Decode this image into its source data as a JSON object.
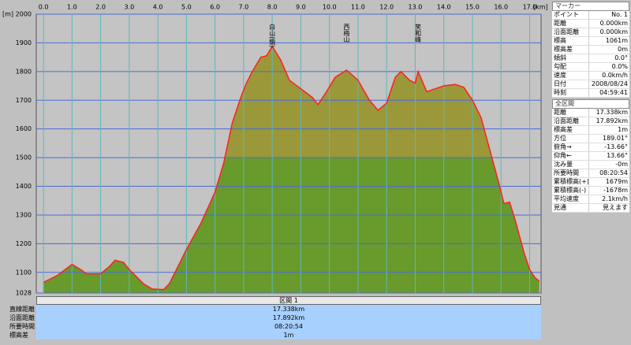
{
  "chart_data": {
    "type": "area",
    "y_unit": "[m]",
    "x_unit": "[km]",
    "x": [
      0,
      0.5,
      1.0,
      1.3,
      1.5,
      2.0,
      2.3,
      2.5,
      2.8,
      3.0,
      3.5,
      3.8,
      4.2,
      4.4,
      4.6,
      5.0,
      5.5,
      6.0,
      6.3,
      6.6,
      6.9,
      7.1,
      7.3,
      7.6,
      7.8,
      8.0,
      8.3,
      8.6,
      9.0,
      9.4,
      9.6,
      9.9,
      10.2,
      10.6,
      11.0,
      11.4,
      11.7,
      12.0,
      12.3,
      12.5,
      12.8,
      13.0,
      13.1,
      13.4,
      13.7,
      14.0,
      14.4,
      14.7,
      15.0,
      15.3,
      15.6,
      15.9,
      16.1,
      16.3,
      16.5,
      16.8,
      17.0,
      17.2,
      17.338
    ],
    "values": [
      1065,
      1090,
      1128,
      1110,
      1095,
      1095,
      1120,
      1142,
      1135,
      1110,
      1060,
      1042,
      1040,
      1060,
      1100,
      1180,
      1270,
      1380,
      1480,
      1620,
      1710,
      1760,
      1800,
      1850,
      1855,
      1888,
      1840,
      1770,
      1740,
      1710,
      1685,
      1730,
      1780,
      1805,
      1770,
      1700,
      1665,
      1690,
      1780,
      1800,
      1770,
      1760,
      1800,
      1730,
      1740,
      1750,
      1755,
      1745,
      1700,
      1640,
      1530,
      1420,
      1340,
      1345,
      1280,
      1170,
      1110,
      1080,
      1070
    ],
    "line_color": "#ff2020",
    "fill_low": "#689a2c",
    "fill_high": "#9a9838",
    "split": 1500,
    "background": "#c4c4c4",
    "xlim": [
      -0.25,
      17.4
    ],
    "ylim": [
      1028,
      2000
    ],
    "xticks": [
      {
        "value": 0,
        "label": "0.0"
      },
      {
        "value": 1,
        "label": "1.0"
      },
      {
        "value": 2,
        "label": "2.0"
      },
      {
        "value": 3,
        "label": "3.0"
      },
      {
        "value": 4,
        "label": "4.0"
      },
      {
        "value": 5,
        "label": "5.0"
      },
      {
        "value": 6,
        "label": "6.0"
      },
      {
        "value": 7,
        "label": "7.0"
      },
      {
        "value": 8,
        "label": "8.0"
      },
      {
        "value": 9,
        "label": "9.0"
      },
      {
        "value": 10,
        "label": "10.0"
      },
      {
        "value": 11,
        "label": "11.0"
      },
      {
        "value": 12,
        "label": "12.0"
      },
      {
        "value": 13,
        "label": "13.0"
      },
      {
        "value": 14,
        "label": "14.0"
      },
      {
        "value": 15,
        "label": "15.0"
      },
      {
        "value": 16,
        "label": "16.0"
      },
      {
        "value": 17,
        "label": "17.0"
      }
    ],
    "yticks": [
      2000,
      1900,
      1800,
      1700,
      1600,
      1500,
      1400,
      1300,
      1200,
      1100,
      1028
    ],
    "annotations": [
      {
        "x": 8.0,
        "text": "白山(鏡)"
      },
      {
        "x": 10.6,
        "text": "西梅山"
      },
      {
        "x": 13.1,
        "text": "笑和峰"
      }
    ]
  },
  "bottom": {
    "title": "区間 1",
    "rows": [
      [
        "直線距離",
        "17.338km"
      ],
      [
        "沿面距離",
        "17.892km"
      ],
      [
        "所要時間",
        "08:20:54"
      ],
      [
        "標高差",
        "1m"
      ]
    ]
  },
  "marker": {
    "title": "マーカー",
    "rows": [
      [
        "ポイント",
        "No. 1"
      ],
      [
        "距離",
        "0.000km"
      ],
      [
        "沿面距離",
        "0.000km"
      ],
      [
        "標高",
        "1061m"
      ],
      [
        "標高差",
        "0m"
      ],
      [
        "傾斜",
        "0.0°"
      ],
      [
        "勾配",
        "0.0%"
      ],
      [
        "速度",
        "0.0km/h"
      ],
      [
        "日付",
        "2008/08/24"
      ],
      [
        "時刻",
        "04:59:41"
      ]
    ]
  },
  "total": {
    "title": "全区間",
    "rows": [
      [
        "距離",
        "17.338km"
      ],
      [
        "沿面距離",
        "17.892km"
      ],
      [
        "標高差",
        "1m"
      ],
      [
        "方位",
        "189.01°"
      ],
      [
        "俯角→",
        "-13.66°"
      ],
      [
        "仰角←",
        "13.66°"
      ],
      [
        "沈み量",
        "-0m"
      ],
      [
        "所要時間",
        "08:20:54"
      ],
      [
        "累積標高(+)",
        "1679m"
      ],
      [
        "累積標高(-)",
        "-1678m"
      ],
      [
        "平均速度",
        "2.1km/h"
      ],
      [
        "見通",
        "見えます"
      ]
    ]
  }
}
